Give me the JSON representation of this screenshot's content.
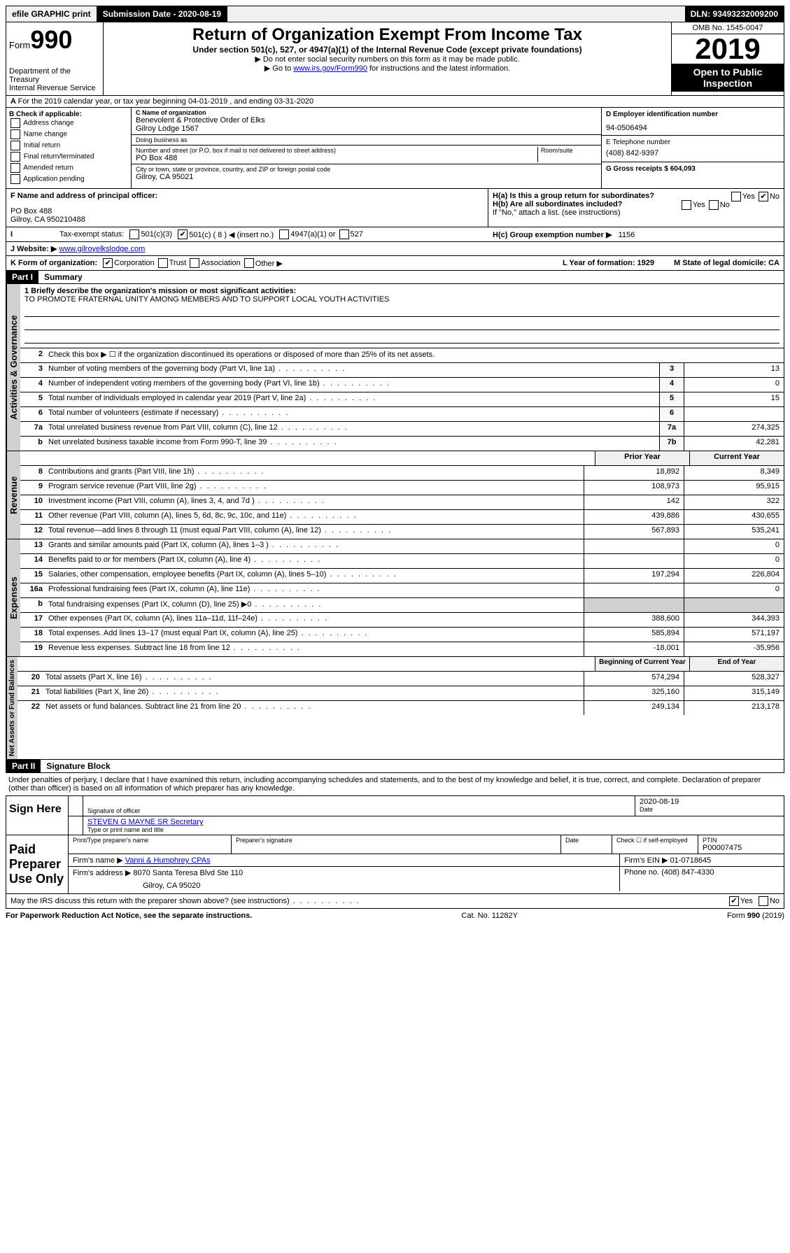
{
  "topbar": {
    "efile": "efile GRAPHIC print",
    "submission_label": "Submission Date - 2020-08-19",
    "dln": "DLN: 93493232009200"
  },
  "header": {
    "form_label": "Form",
    "form_number": "990",
    "dept": "Department of the Treasury",
    "irs": "Internal Revenue Service",
    "title": "Return of Organization Exempt From Income Tax",
    "subtitle": "Under section 501(c), 527, or 4947(a)(1) of the Internal Revenue Code (except private foundations)",
    "note1": "▶ Do not enter social security numbers on this form as it may be made public.",
    "note2_pre": "▶ Go to ",
    "note2_link": "www.irs.gov/Form990",
    "note2_post": " for instructions and the latest information.",
    "omb": "OMB No. 1545-0047",
    "year": "2019",
    "open": "Open to Public Inspection"
  },
  "line_a": "For the 2019 calendar year, or tax year beginning 04-01-2019    , and ending 03-31-2020",
  "box_b": {
    "label": "B Check if applicable:",
    "opts": [
      "Address change",
      "Name change",
      "Initial return",
      "Final return/terminated",
      "Amended return",
      "Application pending"
    ]
  },
  "box_c": {
    "name_label": "C Name of organization",
    "name": "Benevolent & Protective Order of Elks",
    "name2": "Gilroy Lodge 1567",
    "dba_label": "Doing business as",
    "addr_label": "Number and street (or P.O. box if mail is not delivered to street address)",
    "room_label": "Room/suite",
    "addr": "PO Box 488",
    "city_label": "City or town, state or province, country, and ZIP or foreign postal code",
    "city": "Gilroy, CA  95021"
  },
  "box_d": {
    "ein_label": "D Employer identification number",
    "ein": "94-0506494",
    "phone_label": "E Telephone number",
    "phone": "(408) 842-9397",
    "gross_label": "G Gross receipts $ 604,093"
  },
  "box_f": {
    "label": "F Name and address of principal officer:",
    "addr1": "PO Box 488",
    "addr2": "Gilroy, CA  950210488"
  },
  "box_h": {
    "ha_label": "H(a)  Is this a group return for subordinates?",
    "hb_label": "H(b)  Are all subordinates included?",
    "hb_note": "If \"No,\" attach a list. (see instructions)",
    "hc_label": "H(c)  Group exemption number ▶",
    "hc_val": "1156"
  },
  "box_i": {
    "label": "Tax-exempt status:",
    "c3": "501(c)(3)",
    "c": "501(c) ( 8 ) ◀ (insert no.)",
    "a1": "4947(a)(1) or",
    "s527": "527"
  },
  "box_j": {
    "label": "J    Website: ▶",
    "val": "www.gilroyelkslodge.com"
  },
  "box_k": {
    "label": "K Form of organization:",
    "corp": "Corporation",
    "trust": "Trust",
    "assoc": "Association",
    "other": "Other ▶"
  },
  "box_l": {
    "label": "L Year of formation: 1929"
  },
  "box_m": {
    "label": "M State of legal domicile: CA"
  },
  "part1": {
    "header": "Part I",
    "title": "Summary",
    "line1_label": "1  Briefly describe the organization's mission or most significant activities:",
    "line1_val": "TO PROMOTE FRATERNAL UNITY AMONG MEMBERS AND TO SUPPORT LOCAL YOUTH ACTIVITIES",
    "line2": "Check this box ▶ ☐  if the organization discontinued its operations or disposed of more than 25% of its net assets.",
    "rows_ag": [
      {
        "n": "3",
        "d": "Number of voting members of the governing body (Part VI, line 1a)",
        "b": "3",
        "v": "13"
      },
      {
        "n": "4",
        "d": "Number of independent voting members of the governing body (Part VI, line 1b)",
        "b": "4",
        "v": "0"
      },
      {
        "n": "5",
        "d": "Total number of individuals employed in calendar year 2019 (Part V, line 2a)",
        "b": "5",
        "v": "15"
      },
      {
        "n": "6",
        "d": "Total number of volunteers (estimate if necessary)",
        "b": "6",
        "v": ""
      },
      {
        "n": "7a",
        "d": "Total unrelated business revenue from Part VIII, column (C), line 12",
        "b": "7a",
        "v": "274,325"
      },
      {
        "n": "b",
        "d": "Net unrelated business taxable income from Form 990-T, line 39",
        "b": "7b",
        "v": "42,281"
      }
    ],
    "col_headers": {
      "py": "Prior Year",
      "cy": "Current Year"
    },
    "rows_rev": [
      {
        "n": "8",
        "d": "Contributions and grants (Part VIII, line 1h)",
        "py": "18,892",
        "cy": "8,349"
      },
      {
        "n": "9",
        "d": "Program service revenue (Part VIII, line 2g)",
        "py": "108,973",
        "cy": "95,915"
      },
      {
        "n": "10",
        "d": "Investment income (Part VIII, column (A), lines 3, 4, and 7d )",
        "py": "142",
        "cy": "322"
      },
      {
        "n": "11",
        "d": "Other revenue (Part VIII, column (A), lines 5, 6d, 8c, 9c, 10c, and 11e)",
        "py": "439,886",
        "cy": "430,655"
      },
      {
        "n": "12",
        "d": "Total revenue—add lines 8 through 11 (must equal Part VIII, column (A), line 12)",
        "py": "567,893",
        "cy": "535,241"
      }
    ],
    "rows_exp": [
      {
        "n": "13",
        "d": "Grants and similar amounts paid (Part IX, column (A), lines 1–3 )",
        "py": "",
        "cy": "0"
      },
      {
        "n": "14",
        "d": "Benefits paid to or for members (Part IX, column (A), line 4)",
        "py": "",
        "cy": "0"
      },
      {
        "n": "15",
        "d": "Salaries, other compensation, employee benefits (Part IX, column (A), lines 5–10)",
        "py": "197,294",
        "cy": "226,804"
      },
      {
        "n": "16a",
        "d": "Professional fundraising fees (Part IX, column (A), line 11e)",
        "py": "",
        "cy": "0"
      },
      {
        "n": "b",
        "d": "Total fundraising expenses (Part IX, column (D), line 25) ▶0",
        "py": "grey",
        "cy": "grey"
      },
      {
        "n": "17",
        "d": "Other expenses (Part IX, column (A), lines 11a–11d, 11f–24e)",
        "py": "388,600",
        "cy": "344,393"
      },
      {
        "n": "18",
        "d": "Total expenses. Add lines 13–17 (must equal Part IX, column (A), line 25)",
        "py": "585,894",
        "cy": "571,197"
      },
      {
        "n": "19",
        "d": "Revenue less expenses. Subtract line 18 from line 12",
        "py": "-18,001",
        "cy": "-35,956"
      }
    ],
    "col_headers2": {
      "py": "Beginning of Current Year",
      "cy": "End of Year"
    },
    "rows_na": [
      {
        "n": "20",
        "d": "Total assets (Part X, line 16)",
        "py": "574,294",
        "cy": "528,327"
      },
      {
        "n": "21",
        "d": "Total liabilities (Part X, line 26)",
        "py": "325,160",
        "cy": "315,149"
      },
      {
        "n": "22",
        "d": "Net assets or fund balances. Subtract line 21 from line 20",
        "py": "249,134",
        "cy": "213,178"
      }
    ],
    "vlabels": {
      "ag": "Activities & Governance",
      "rev": "Revenue",
      "exp": "Expenses",
      "na": "Net Assets or Fund Balances"
    }
  },
  "part2": {
    "header": "Part II",
    "title": "Signature Block",
    "decl": "Under penalties of perjury, I declare that I have examined this return, including accompanying schedules and statements, and to the best of my knowledge and belief, it is true, correct, and complete. Declaration of preparer (other than officer) is based on all information of which preparer has any knowledge.",
    "sign_here": "Sign Here",
    "sig_officer": "Signature of officer",
    "date": "Date",
    "date_val": "2020-08-19",
    "officer_name": "STEVEN G MAYNE SR Secretary",
    "type_name": "Type or print name and title",
    "paid": "Paid Preparer Use Only",
    "prep_name_label": "Print/Type preparer's name",
    "prep_sig_label": "Preparer's signature",
    "check_self": "Check ☐ if self-employed",
    "ptin_label": "PTIN",
    "ptin": "P00007475",
    "firm_name_label": "Firm's name    ▶",
    "firm_name": "Vanni & Humphrey CPAs",
    "firm_ein_label": "Firm's EIN ▶",
    "firm_ein": "01-0718645",
    "firm_addr_label": "Firm's address ▶",
    "firm_addr": "8070 Santa Teresa Blvd Ste 110",
    "firm_city": "Gilroy, CA  95020",
    "phone_label": "Phone no.",
    "phone": "(408) 847-4330"
  },
  "footer": {
    "discuss": "May the IRS discuss this return with the preparer shown above? (see instructions)",
    "paperwork": "For Paperwork Reduction Act Notice, see the separate instructions.",
    "cat": "Cat. No. 11282Y",
    "form": "Form 990 (2019)"
  }
}
